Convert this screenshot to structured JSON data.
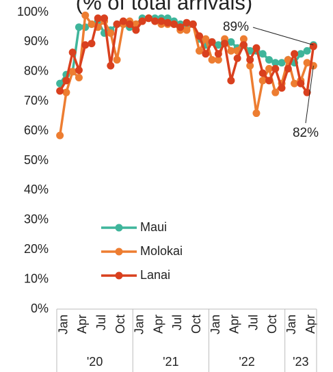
{
  "chart_data": {
    "type": "line",
    "title": "(% of total arrivals)",
    "categories": [
      "Jan",
      null,
      null,
      "Apr",
      null,
      null,
      "Jul",
      null,
      null,
      "Oct",
      null,
      null,
      "Jan",
      null,
      null,
      "Apr",
      null,
      null,
      "Jul",
      null,
      null,
      "Oct",
      null,
      null,
      "Jan",
      null,
      null,
      "Apr",
      null,
      null,
      "Jul",
      null,
      null,
      "Oct",
      null,
      null,
      "Jan",
      null,
      null,
      "Apr",
      null
    ],
    "x_groups": [
      "'20",
      "'21",
      "'22",
      "'23"
    ],
    "series": [
      {
        "name": "Maui",
        "color": "#3fb59b",
        "values": [
          76,
          79,
          80,
          95,
          95,
          96,
          97,
          93,
          94,
          96,
          96,
          95,
          96,
          98,
          98,
          98,
          98,
          98,
          97,
          96,
          96,
          96,
          91,
          89,
          90,
          89,
          90,
          90,
          88,
          89,
          87,
          87,
          86,
          84,
          83,
          83,
          84,
          83,
          86,
          87,
          89
        ],
        "value_labels": [
          null,
          null,
          null,
          null,
          null,
          null,
          null,
          null,
          null,
          null,
          null,
          null,
          null,
          null,
          null,
          null,
          null,
          null,
          null,
          null,
          null,
          null,
          null,
          null,
          null,
          null,
          null,
          null,
          null,
          null,
          null,
          null,
          null,
          null,
          null,
          null,
          null,
          null,
          null,
          null,
          "89%"
        ]
      },
      {
        "name": "Molokai",
        "color": "#ed7d31",
        "values": [
          58.5,
          73,
          80,
          78,
          99,
          96,
          95,
          97,
          93,
          84,
          96,
          97,
          96,
          97,
          98,
          97,
          96,
          96,
          96,
          94,
          94,
          96,
          87,
          91,
          84,
          84,
          91,
          87,
          87,
          91,
          82,
          66,
          77,
          81,
          73,
          76,
          84,
          76,
          77,
          83,
          82
        ],
        "value_labels": [
          null,
          null,
          null,
          null,
          null,
          null,
          null,
          null,
          null,
          null,
          null,
          null,
          null,
          null,
          null,
          null,
          null,
          null,
          null,
          null,
          null,
          null,
          null,
          null,
          null,
          null,
          null,
          null,
          null,
          null,
          null,
          null,
          null,
          null,
          null,
          null,
          null,
          null,
          null,
          null,
          "82%"
        ]
      },
      {
        "name": "Lanai",
        "color": "#d9401e",
        "values": [
          73.5,
          77,
          86.5,
          80.5,
          89,
          89.5,
          98,
          98,
          82,
          96,
          97,
          96,
          94,
          97,
          98,
          97,
          97,
          96.5,
          96,
          95,
          96.5,
          96,
          92,
          86,
          90,
          86,
          89.5,
          77,
          84.5,
          89,
          84,
          88,
          79.5,
          77,
          81,
          74.5,
          81,
          86,
          76,
          73,
          88.5
        ]
      }
    ],
    "ylim": [
      0,
      100
    ],
    "yticks": [
      {
        "value": 0,
        "label": "0%"
      },
      {
        "value": 10,
        "label": "10%"
      },
      {
        "value": 20,
        "label": "20%"
      },
      {
        "value": 30,
        "label": "30%"
      },
      {
        "value": 40,
        "label": "40%"
      },
      {
        "value": 50,
        "label": "50%"
      },
      {
        "value": 60,
        "label": "60%"
      },
      {
        "value": 70,
        "label": "70%"
      },
      {
        "value": 80,
        "label": "80%"
      },
      {
        "value": 90,
        "label": "90%"
      },
      {
        "value": 100,
        "label": "100%"
      }
    ],
    "grid": false,
    "legend": "lower-left"
  }
}
